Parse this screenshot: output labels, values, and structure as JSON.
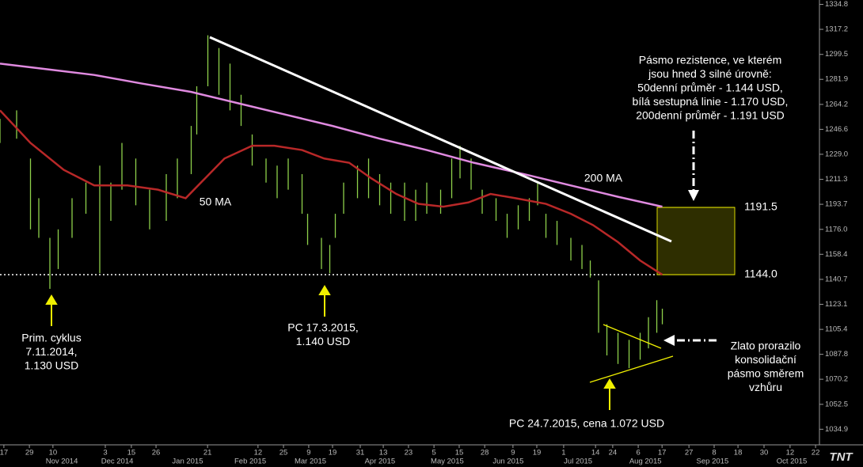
{
  "chart_data": {
    "type": "price",
    "xlim": [
      0,
      295.7
    ],
    "ylim": [
      1023.9,
      1337.9
    ],
    "yticks": [
      1334.8,
      1317.2,
      1299.5,
      1281.9,
      1264.2,
      1246.6,
      {
        "value": 1229,
        "label": "1229.0"
      },
      1211.3,
      1193.7,
      {
        "value": 1176,
        "label": "1176.0"
      },
      1158.4,
      1140.7,
      1123.1,
      1105.4,
      1087.8,
      1070.2,
      1052.5,
      1034.9
    ],
    "xticks": [
      {
        "value": 1.4,
        "label": "17"
      },
      {
        "value": 10.6,
        "label": "29"
      },
      {
        "value": 19.1,
        "label": "10"
      },
      {
        "value": 38,
        "label": "3"
      },
      {
        "value": 47.4,
        "label": "15"
      },
      {
        "value": 56.3,
        "label": "26"
      },
      {
        "value": 74.9,
        "label": "21"
      },
      {
        "value": 93.1,
        "label": "12"
      },
      {
        "value": 102.3,
        "label": "25"
      },
      {
        "value": 111.4,
        "label": "9"
      },
      {
        "value": 120,
        "label": "19"
      },
      {
        "value": 130,
        "label": "31"
      },
      {
        "value": 138.3,
        "label": "13"
      },
      {
        "value": 147.4,
        "label": "23"
      },
      {
        "value": 156.6,
        "label": "5"
      },
      {
        "value": 165.7,
        "label": "15"
      },
      {
        "value": 174.9,
        "label": "28"
      },
      {
        "value": 185.1,
        "label": "9"
      },
      {
        "value": 193.7,
        "label": "19"
      },
      {
        "value": 203.4,
        "label": "1"
      },
      {
        "value": 214.9,
        "label": "14"
      },
      {
        "value": 221.1,
        "label": "24"
      },
      {
        "value": 230.3,
        "label": "6"
      },
      {
        "value": 238.9,
        "label": "17"
      },
      {
        "value": 248.6,
        "label": "27"
      },
      {
        "value": 257.7,
        "label": "8"
      },
      {
        "value": 266.3,
        "label": "18"
      },
      {
        "value": 275.7,
        "label": "30"
      },
      {
        "value": 285.1,
        "label": "12"
      },
      {
        "value": 294.3,
        "label": "22"
      }
    ],
    "month_ticks": [
      {
        "value": 22.3,
        "label": "Nov 2014"
      },
      {
        "value": 42.3,
        "label": "Dec 2014"
      },
      {
        "value": 67.7,
        "label": "Jan 2015"
      },
      {
        "value": 90.3,
        "label": "Feb 2015"
      },
      {
        "value": 112,
        "label": "Mar 2015"
      },
      {
        "value": 137.1,
        "label": "Apr 2015"
      },
      {
        "value": 161.4,
        "label": "May 2015"
      },
      {
        "value": 183.4,
        "label": "Jun 2015"
      },
      {
        "value": 208.6,
        "label": "Jul 2015"
      },
      {
        "value": 232.9,
        "label": "Aug 2015"
      },
      {
        "value": 257.1,
        "label": "Sep 2015"
      },
      {
        "value": 285.7,
        "label": "Oct 2015"
      }
    ],
    "bars": {
      "color": "#8ed04a",
      "x": [
        0,
        6,
        11,
        14,
        18,
        21,
        26,
        31,
        36,
        40,
        44,
        49,
        54,
        60,
        64,
        69,
        71,
        75,
        79,
        83,
        87,
        91,
        96,
        100,
        104,
        109,
        111,
        116,
        119,
        121,
        124,
        129,
        133,
        137,
        141,
        146,
        150,
        154,
        159,
        163,
        166,
        170,
        174,
        179,
        183,
        187,
        191,
        194,
        197,
        201,
        206,
        210,
        213,
        216,
        219,
        223,
        227,
        231,
        234,
        237,
        239
      ],
      "high": [
        1254,
        1260,
        1226,
        1198,
        1170,
        1176,
        1198,
        1209,
        1221,
        1209,
        1237,
        1226,
        1204,
        1215,
        1226,
        1249,
        1277,
        1313,
        1304,
        1293,
        1271,
        1243,
        1226,
        1221,
        1226,
        1215,
        1187,
        1170,
        1165,
        1187,
        1209,
        1221,
        1226,
        1215,
        1209,
        1209,
        1204,
        1209,
        1204,
        1226,
        1235,
        1226,
        1204,
        1198,
        1187,
        1193,
        1198,
        1209,
        1187,
        1182,
        1170,
        1165,
        1154,
        1140,
        1109,
        1103,
        1098,
        1103,
        1114,
        1126,
        1120
      ],
      "low": [
        1237,
        1240,
        1176,
        1170,
        1134,
        1148,
        1170,
        1187,
        1145,
        1182,
        1204,
        1193,
        1176,
        1182,
        1198,
        1215,
        1243,
        1277,
        1271,
        1260,
        1249,
        1221,
        1209,
        1198,
        1204,
        1187,
        1165,
        1148,
        1145,
        1170,
        1187,
        1198,
        1198,
        1193,
        1187,
        1182,
        1182,
        1187,
        1187,
        1198,
        1212,
        1204,
        1187,
        1182,
        1170,
        1176,
        1182,
        1193,
        1170,
        1165,
        1154,
        1148,
        1142,
        1103,
        1087,
        1081,
        1078,
        1084,
        1092,
        1103,
        1109
      ]
    },
    "lines": [
      {
        "label": "50 MA",
        "color": "#b82828",
        "x": [
          0,
          11,
          23,
          34,
          46,
          57,
          67,
          74,
          81,
          91,
          99,
          109,
          117,
          126,
          134,
          143,
          151,
          160,
          169,
          177,
          186,
          197,
          206,
          214,
          223,
          231,
          239
        ],
        "values": [
          1260,
          1237,
          1218,
          1207,
          1207,
          1204,
          1198,
          1212,
          1226,
          1235,
          1235,
          1232,
          1226,
          1223,
          1212,
          1201,
          1194,
          1192,
          1195,
          1201,
          1198,
          1194,
          1187,
          1179,
          1167,
          1154,
          1144
        ]
      },
      {
        "label": "200 MA",
        "color": "#e08ae0",
        "x": [
          0,
          17,
          34,
          51,
          69,
          86,
          103,
          120,
          137,
          154,
          171,
          189,
          206,
          223,
          239
        ],
        "values": [
          1293,
          1289,
          1285,
          1279,
          1273,
          1265,
          1257,
          1249,
          1240,
          1232,
          1223,
          1215,
          1207,
          1199,
          1192
        ]
      }
    ],
    "levels": [
      {
        "value": 1191.5,
        "label": "1191.5"
      },
      {
        "value": 1144,
        "label": "1144.0"
      }
    ],
    "annotations": [
      {
        "lines": [
          "Pásmo rezistence, ve kterém",
          "jsou hned 3 silné úrovně:",
          "50denní průměr - 1.144 USD,",
          "bílá sestupná linie - 1.170 USD,",
          "200denní průměr - 1.191 USD"
        ]
      },
      {
        "lines": [
          "Prim. cyklus",
          "7.11.2014,",
          "1.130 USD"
        ]
      },
      {
        "lines": [
          "PC 17.3.2015,",
          "1.140 USD"
        ]
      },
      {
        "lines": [
          "Zlato prorazilo",
          "konsolidační",
          "pásmo směrem",
          "vzhůru"
        ]
      },
      {
        "lines": [
          "PC 24.7.2015, cena 1.072 USD"
        ]
      }
    ],
    "logo": "TNT"
  }
}
